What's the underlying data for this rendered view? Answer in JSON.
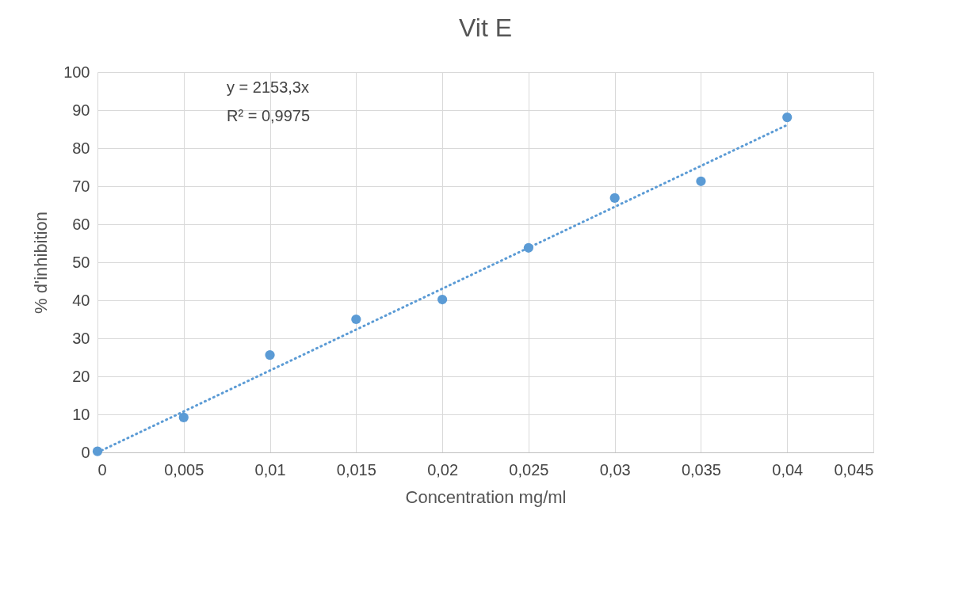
{
  "chart_data": {
    "type": "scatter",
    "title": "Vit E",
    "xlabel": "Concentration mg/ml",
    "ylabel": "% d'inhibition",
    "x": [
      0,
      0.005,
      0.01,
      0.015,
      0.02,
      0.025,
      0.03,
      0.035,
      0.04
    ],
    "series": [
      {
        "color": "#5b9bd5",
        "marker": "circle",
        "values": [
          0.3,
          9.2,
          25.6,
          35.0,
          40.2,
          53.8,
          66.9,
          71.3,
          88.1
        ]
      },
      {
        "type": "line",
        "color": "#5b9bd5",
        "line_style": "dotted",
        "marker": "none",
        "x": [
          0,
          0.04
        ],
        "values": [
          0,
          86.1
        ]
      }
    ],
    "annotations": [
      "y = 2153,3x",
      "R² = 0,9975"
    ],
    "xlim": [
      0,
      0.045
    ],
    "xticks": [
      0,
      {
        "value": 0.005,
        "label": "0,005"
      },
      {
        "value": 0.01,
        "label": "0,01"
      },
      {
        "value": 0.015,
        "label": "0,015"
      },
      {
        "value": 0.02,
        "label": "0,02"
      },
      {
        "value": 0.025,
        "label": "0,025"
      },
      {
        "value": 0.03,
        "label": "0,03"
      },
      {
        "value": 0.035,
        "label": "0,035"
      },
      {
        "value": 0.04,
        "label": "0,04"
      },
      {
        "value": 0.045,
        "label": "0,045"
      }
    ],
    "ylim": [
      0,
      100
    ],
    "yticks": [
      0,
      10,
      20,
      30,
      40,
      50,
      60,
      70,
      80,
      90,
      100
    ],
    "grid": true,
    "legend": false
  }
}
